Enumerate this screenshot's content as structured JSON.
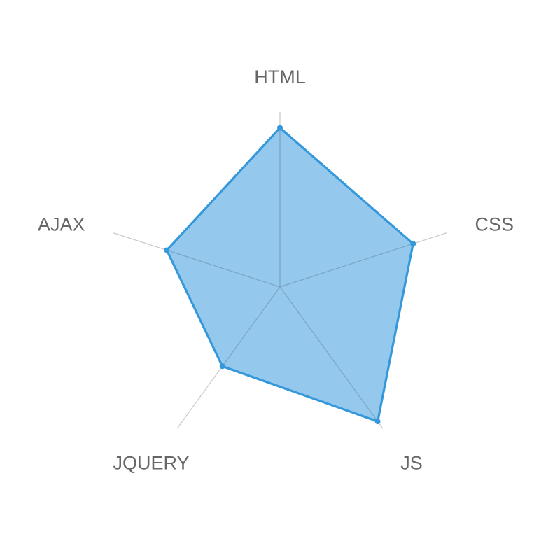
{
  "colors": {
    "series": "#3498db",
    "axis": "#c9c9c9",
    "label": "#666666"
  },
  "chart_data": {
    "type": "radar",
    "title": "",
    "axes": [
      "HTML",
      "CSS",
      "JS",
      "JQUERY",
      "AJAX"
    ],
    "series": [
      {
        "values": [
          91,
          80,
          95,
          56,
          68
        ]
      }
    ],
    "range": [
      0,
      100
    ],
    "legend": "none",
    "grid": false
  }
}
